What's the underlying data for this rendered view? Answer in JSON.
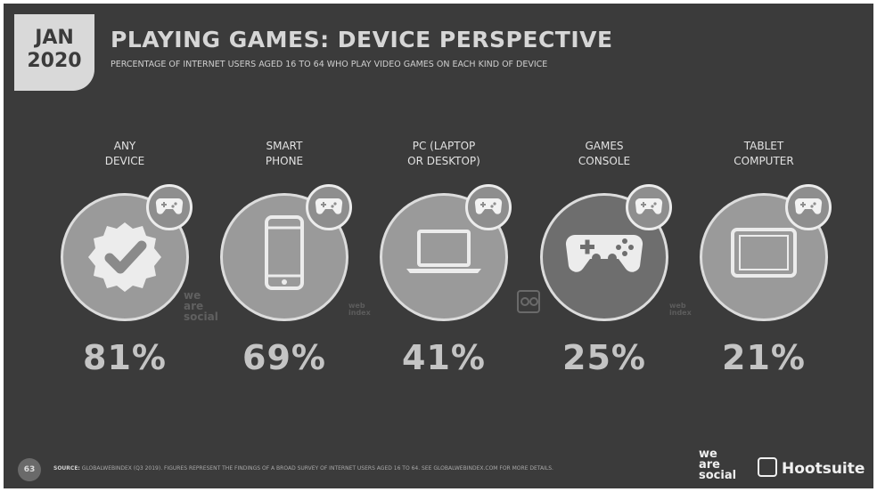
{
  "badge": {
    "month": "JAN",
    "year": "2020"
  },
  "title": "PLAYING GAMES: DEVICE PERSPECTIVE",
  "subtitle": "PERCENTAGE OF INTERNET USERS AGED 16 TO 64 WHO PLAY VIDEO GAMES ON EACH KIND OF DEVICE",
  "chart_data": {
    "type": "table",
    "title": "PLAYING GAMES: DEVICE PERSPECTIVE",
    "subtitle": "PERCENTAGE OF INTERNET USERS AGED 16 TO 64 WHO PLAY VIDEO GAMES ON EACH KIND OF DEVICE",
    "categories": [
      "ANY DEVICE",
      "SMART PHONE",
      "PC (LAPTOP OR DESKTOP)",
      "GAMES CONSOLE",
      "TABLET COMPUTER"
    ],
    "values": [
      81,
      69,
      41,
      25,
      21
    ],
    "unit": "%",
    "items": [
      {
        "label_line1": "ANY",
        "label_line2": "DEVICE",
        "icon": "checkmark-seal-icon",
        "percent": "81%"
      },
      {
        "label_line1": "SMART",
        "label_line2": "PHONE",
        "icon": "smartphone-icon",
        "percent": "69%"
      },
      {
        "label_line1": "PC (LAPTOP",
        "label_line2": "OR DESKTOP)",
        "icon": "laptop-icon",
        "percent": "41%"
      },
      {
        "label_line1": "GAMES",
        "label_line2": "CONSOLE",
        "icon": "gamepad-icon",
        "percent": "25%"
      },
      {
        "label_line1": "TABLET",
        "label_line2": "COMPUTER",
        "icon": "tablet-icon",
        "percent": "21%"
      }
    ]
  },
  "watermarks": {
    "we_are_social": [
      "we",
      "are",
      "social"
    ],
    "gwi_1": [
      "web",
      "index"
    ],
    "gwi_2": [
      "web",
      "index"
    ]
  },
  "footer": {
    "page_number": "63",
    "source_label": "SOURCE:",
    "source_text": "GLOBALWEBINDEX (Q3 2019). FIGURES REPRESENT THE FINDINGS OF A BROAD SURVEY OF INTERNET USERS AGED 16 TO 64. SEE GLOBALWEBINDEX.COM FOR MORE DETAILS.",
    "brand_ws": [
      "we",
      "are",
      "social"
    ],
    "brand_hs": "Hootsuite"
  },
  "colors": {
    "background": "#3b3b3b",
    "circle_light": "#9a9a9a",
    "circle_dark": "#6e6e6e",
    "text": "#c4c4c4"
  }
}
